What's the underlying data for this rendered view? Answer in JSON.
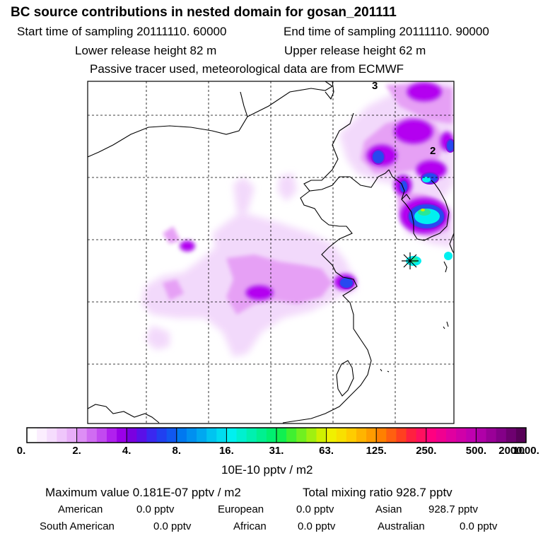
{
  "header": {
    "title": "BC  source contributions in nested domain for gosan_201111",
    "start_label": "Start time of sampling 20111110. 60000",
    "end_label": "End time of sampling 20111110. 90000",
    "lower_label": "Lower release height   82 m",
    "upper_label": "Upper release height   62 m",
    "tracer_note": "Passive tracer used, meteorological data are from ECMWF"
  },
  "map": {
    "contour_labels": [
      "3",
      "2"
    ],
    "grid_lines": "dashed",
    "receptor_marker": "star-marker",
    "colors": {
      "light_pink": "#f2d7fb",
      "pink": "#e6a0f5",
      "violet": "#c86ef0",
      "magenta": "#b400f0",
      "purple": "#8c10e0",
      "blue": "#2848f0",
      "cyan": "#00f0f0",
      "green": "#28e898",
      "yellow_green": "#c8f000"
    }
  },
  "colorbar": {
    "tick_labels": [
      "0.",
      "2.",
      "4.",
      "8.",
      "16.",
      "31.",
      "63.",
      "125.",
      "250.",
      "500.",
      "1000.",
      "2000."
    ],
    "unit_label": "10E-10 pptv / m2",
    "bins": [
      [
        "#ffffff",
        "#fbeefe",
        "#f5dcfd",
        "#efc6fb",
        "#e8aef8"
      ],
      [
        "#dd8ef5",
        "#d06cf2",
        "#c24af0",
        "#b020ee",
        "#9a00e8"
      ],
      [
        "#7a00e0",
        "#5a10e8",
        "#3a28f0",
        "#2040f0",
        "#1058f0"
      ],
      [
        "#0078f0",
        "#0090f0",
        "#00a8f0",
        "#00c4f0",
        "#00dcf0"
      ],
      [
        "#00f0f0",
        "#00f0d0",
        "#00f0b0",
        "#00f090",
        "#00f070"
      ],
      [
        "#10f050",
        "#40f030",
        "#70f020",
        "#a0f010",
        "#d0f000"
      ],
      [
        "#f0f000",
        "#f8e000",
        "#ffcc00",
        "#ffb400",
        "#ff9c00"
      ],
      [
        "#ff8000",
        "#ff6010",
        "#ff4020",
        "#ff2040",
        "#ff1060"
      ],
      [
        "#ff0080",
        "#f00090",
        "#e000a0",
        "#d000a8",
        "#c000b0"
      ],
      [
        "#b000a8",
        "#9a0098",
        "#840088",
        "#6e0070",
        "#580058"
      ]
    ]
  },
  "footer": {
    "max_value": "Maximum value  0.181E-07 pptv / m2",
    "total_mixing": "Total mixing ratio      928.7 pptv",
    "regions": [
      {
        "name": "American",
        "value": "0.0 pptv"
      },
      {
        "name": "European",
        "value": "0.0 pptv"
      },
      {
        "name": "Asian",
        "value": "928.7 pptv"
      },
      {
        "name": "South American",
        "value": "0.0 pptv"
      },
      {
        "name": "African",
        "value": "0.0 pptv"
      },
      {
        "name": "Australian",
        "value": "0.0 pptv"
      }
    ]
  }
}
